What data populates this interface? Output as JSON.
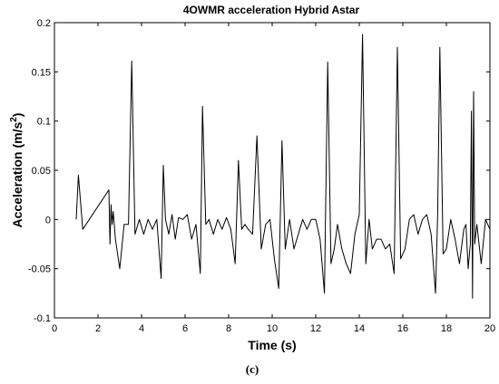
{
  "chart_data": {
    "type": "line",
    "title": "4OWMR acceleration Hybrid Astar",
    "xlabel": "Time (s)",
    "ylabel_main": "Acceleration (m/s",
    "ylabel_superscript": "2",
    "ylabel_close": ")",
    "caption": "(c)",
    "xlim": [
      0,
      20
    ],
    "ylim": [
      -0.1,
      0.2
    ],
    "x_ticks": [
      0,
      2,
      4,
      6,
      8,
      10,
      12,
      14,
      16,
      18,
      20
    ],
    "y_ticks": [
      -0.1,
      -0.05,
      0,
      0.05,
      0.1,
      0.15,
      0.2
    ],
    "y_tick_labels": [
      "-0.1",
      "-0.05",
      "0",
      "0.05",
      "0.1",
      "0.15",
      "0.2"
    ],
    "grid": false,
    "series": [
      {
        "color": "#000000",
        "x": [
          1.0,
          1.1,
          1.3,
          2.5,
          2.55,
          2.6,
          2.65,
          2.7,
          2.8,
          3.0,
          3.2,
          3.4,
          3.55,
          3.7,
          3.9,
          4.1,
          4.3,
          4.5,
          4.7,
          4.9,
          5.0,
          5.1,
          5.25,
          5.4,
          5.55,
          5.7,
          5.9,
          6.1,
          6.3,
          6.5,
          6.7,
          6.8,
          6.95,
          7.1,
          7.3,
          7.5,
          7.7,
          7.9,
          8.1,
          8.3,
          8.45,
          8.6,
          8.75,
          8.9,
          9.1,
          9.3,
          9.5,
          9.7,
          9.9,
          10.1,
          10.3,
          10.45,
          10.6,
          10.8,
          11.0,
          11.2,
          11.4,
          11.6,
          11.8,
          12.0,
          12.2,
          12.4,
          12.55,
          12.7,
          12.85,
          13.0,
          13.2,
          13.4,
          13.6,
          13.8,
          14.0,
          14.15,
          14.3,
          14.45,
          14.6,
          14.8,
          15.0,
          15.2,
          15.4,
          15.6,
          15.75,
          15.9,
          16.1,
          16.3,
          16.5,
          16.7,
          16.9,
          17.1,
          17.3,
          17.5,
          17.6,
          17.7,
          17.85,
          18.0,
          18.2,
          18.4,
          18.6,
          18.8,
          18.9,
          19.0,
          19.1,
          19.15,
          19.2,
          19.25,
          19.3,
          19.4,
          19.6,
          19.8,
          20.0
        ],
        "y": [
          0.0,
          0.045,
          -0.01,
          0.03,
          -0.025,
          0.015,
          -0.005,
          0.008,
          -0.02,
          -0.05,
          -0.005,
          -0.005,
          0.161,
          -0.015,
          0.0,
          -0.015,
          0.0,
          -0.01,
          0.0,
          -0.06,
          0.055,
          0.0,
          -0.015,
          0.005,
          -0.02,
          0.002,
          0.0,
          0.005,
          -0.02,
          -0.005,
          -0.055,
          0.115,
          -0.005,
          0.0,
          -0.015,
          0.0,
          -0.01,
          0.002,
          -0.01,
          -0.045,
          0.06,
          -0.01,
          -0.005,
          -0.01,
          -0.015,
          0.085,
          -0.03,
          -0.005,
          0.0,
          -0.04,
          -0.07,
          0.08,
          -0.03,
          0.0,
          -0.03,
          -0.015,
          0.0,
          -0.01,
          0.0,
          0.0,
          -0.02,
          -0.075,
          0.16,
          -0.045,
          -0.03,
          -0.005,
          -0.03,
          -0.045,
          -0.055,
          -0.015,
          0.005,
          0.188,
          -0.045,
          0.0,
          -0.03,
          -0.02,
          -0.02,
          -0.03,
          -0.025,
          -0.055,
          0.175,
          -0.04,
          -0.03,
          0.0,
          0.005,
          -0.015,
          0.0,
          0.005,
          -0.015,
          -0.075,
          0.005,
          0.175,
          -0.035,
          -0.03,
          0.0,
          -0.02,
          -0.045,
          -0.01,
          -0.005,
          -0.05,
          -0.025,
          0.11,
          -0.08,
          0.13,
          -0.025,
          -0.005,
          -0.045,
          0.0,
          -0.01
        ]
      }
    ]
  }
}
